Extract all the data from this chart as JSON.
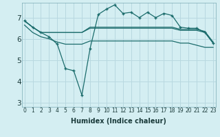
{
  "xlabel": "Humidex (Indice chaleur)",
  "bg_color": "#d4eef2",
  "grid_color": "#b8d8e0",
  "line_color": "#1a6b6b",
  "x_ticks": [
    0,
    1,
    2,
    3,
    4,
    5,
    6,
    7,
    8,
    9,
    10,
    11,
    12,
    13,
    14,
    15,
    16,
    17,
    18,
    19,
    20,
    21,
    22,
    23
  ],
  "ylim": [
    2.8,
    7.7
  ],
  "xlim": [
    -0.3,
    23.3
  ],
  "line1_y": [
    6.85,
    6.55,
    6.3,
    6.3,
    6.3,
    6.3,
    6.3,
    6.3,
    6.55,
    6.55,
    6.55,
    6.55,
    6.55,
    6.55,
    6.55,
    6.55,
    6.55,
    6.55,
    6.55,
    6.45,
    6.45,
    6.45,
    6.35,
    5.85
  ],
  "line2_y": [
    6.85,
    6.55,
    6.3,
    6.3,
    6.3,
    6.3,
    6.3,
    6.3,
    6.5,
    6.5,
    6.5,
    6.5,
    6.5,
    6.5,
    6.5,
    6.5,
    6.5,
    6.5,
    6.5,
    6.4,
    6.4,
    6.4,
    6.3,
    5.8
  ],
  "line3_y": [
    6.65,
    6.3,
    6.1,
    6.0,
    5.85,
    5.75,
    5.75,
    5.75,
    5.9,
    5.9,
    5.9,
    5.9,
    5.9,
    5.9,
    5.9,
    5.9,
    5.9,
    5.9,
    5.9,
    5.8,
    5.8,
    5.7,
    5.6,
    5.6
  ],
  "line4_y": [
    6.85,
    6.55,
    6.3,
    6.1,
    5.75,
    4.6,
    4.5,
    3.35,
    5.55,
    7.15,
    7.4,
    7.6,
    7.2,
    7.25,
    7.0,
    7.25,
    7.0,
    7.2,
    7.1,
    6.55,
    6.5,
    6.5,
    6.3,
    5.8
  ],
  "yticks": [
    3,
    4,
    5,
    6,
    7
  ],
  "xtick_fontsize": 5.5,
  "ytick_fontsize": 7.5,
  "xlabel_fontsize": 7.0
}
